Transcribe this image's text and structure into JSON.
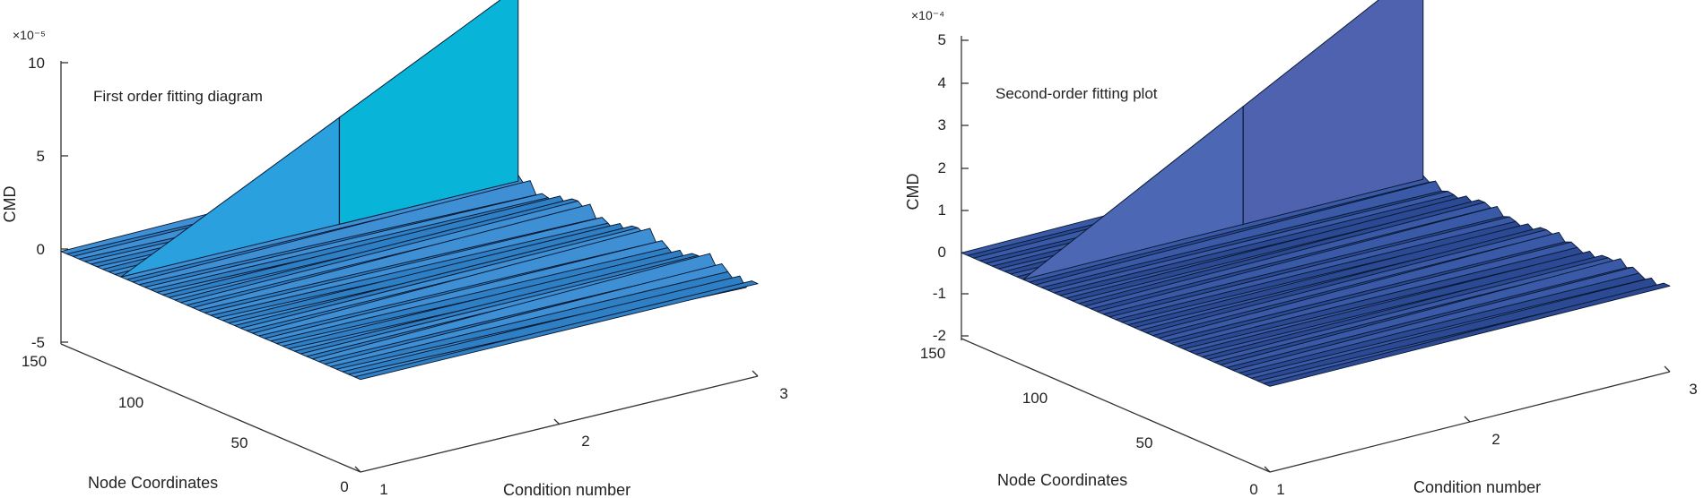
{
  "chart_data": [
    {
      "type": "surface",
      "title": "First order fitting diagram",
      "zlabel": "CMD",
      "xlabel": "Condition number",
      "ylabel": "Node Coordinates",
      "z_exponent": "×10⁻⁵",
      "z_ticks": [
        "10",
        "5",
        "0",
        "-5"
      ],
      "z_range": [
        -5,
        10
      ],
      "y_ticks": [
        "150",
        "100",
        "50",
        "0"
      ],
      "y_range": [
        0,
        150
      ],
      "x_ticks": [
        "1",
        "2",
        "3"
      ],
      "x_range": [
        1,
        3
      ],
      "ridge_node": 120,
      "ridge_start_value": 0,
      "ridge_end_value": 10.5,
      "color_primary": "#3f8fd4",
      "color_ridge_front": "#2aa0df",
      "color_ridge_back": "#08b5d8"
    },
    {
      "type": "surface",
      "title": "Second-order fitting plot",
      "zlabel": "CMD",
      "xlabel": "Condition number",
      "ylabel": "Node Coordinates",
      "z_exponent": "×10⁻⁴",
      "z_ticks": [
        "5",
        "4",
        "3",
        "2",
        "1",
        "0",
        "-1",
        "-2"
      ],
      "z_range": [
        -2,
        5
      ],
      "y_ticks": [
        "150",
        "100",
        "50",
        "0"
      ],
      "y_range": [
        0,
        150
      ],
      "x_ticks": [
        "1",
        "2",
        "3"
      ],
      "x_range": [
        1,
        3
      ],
      "ridge_node": 120,
      "ridge_start_value": 0,
      "ridge_end_value": 5,
      "color_primary": "#3a5aa8",
      "color_ridge_front": "#4c68b4",
      "color_ridge_back": "#4f62b0"
    }
  ]
}
